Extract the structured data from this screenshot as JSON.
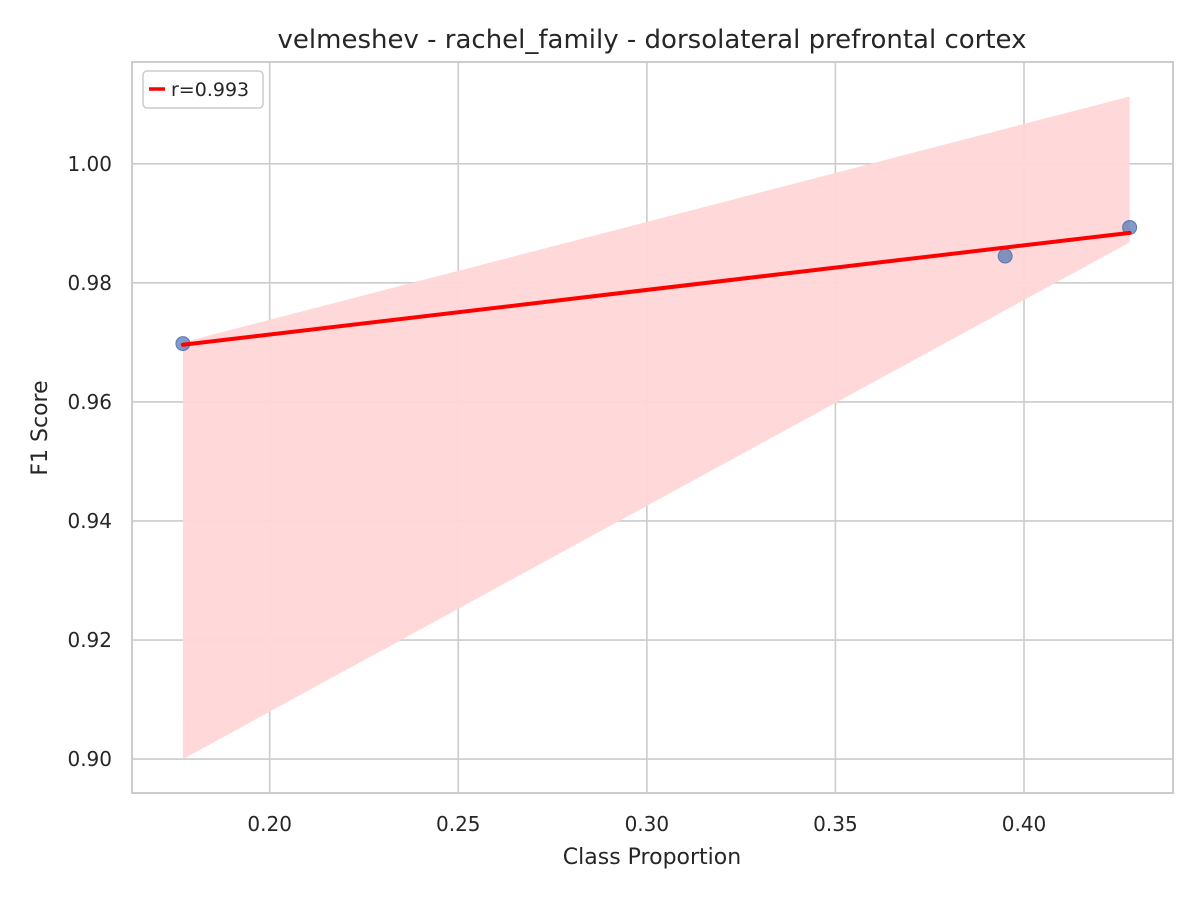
{
  "chart_data": {
    "type": "scatter",
    "title": "velmeshev - rachel_family - dorsolateral prefrontal cortex",
    "xlabel": "Class Proportion",
    "ylabel": "F1 Score",
    "xlim": [
      0.1635,
      0.4395
    ],
    "ylim": [
      0.8943,
      1.0171
    ],
    "xticks": [
      0.2,
      0.25,
      0.3,
      0.35,
      0.4
    ],
    "xtick_labels": [
      "0.20",
      "0.25",
      "0.30",
      "0.35",
      "0.40"
    ],
    "yticks": [
      0.9,
      0.92,
      0.94,
      0.96,
      0.98,
      1.0
    ],
    "ytick_labels": [
      "0.90",
      "0.92",
      "0.94",
      "0.96",
      "0.98",
      "1.00"
    ],
    "grid": true,
    "legend_position": "top-left",
    "series": [
      {
        "kind": "points",
        "color": "#4c72b0",
        "x": [
          0.177,
          0.395,
          0.428
        ],
        "y": [
          0.9698,
          0.9845,
          0.9893
        ]
      },
      {
        "kind": "regression",
        "name": "r=0.993",
        "color": "#ff0000",
        "x": [
          0.177,
          0.428
        ],
        "y": [
          0.9696,
          0.9884
        ]
      },
      {
        "kind": "confidence-band",
        "color": "#ffd6d8",
        "x": [
          0.177,
          0.428
        ],
        "upper": [
          0.97,
          1.0113
        ],
        "lower": [
          0.9,
          0.9868
        ]
      }
    ]
  }
}
